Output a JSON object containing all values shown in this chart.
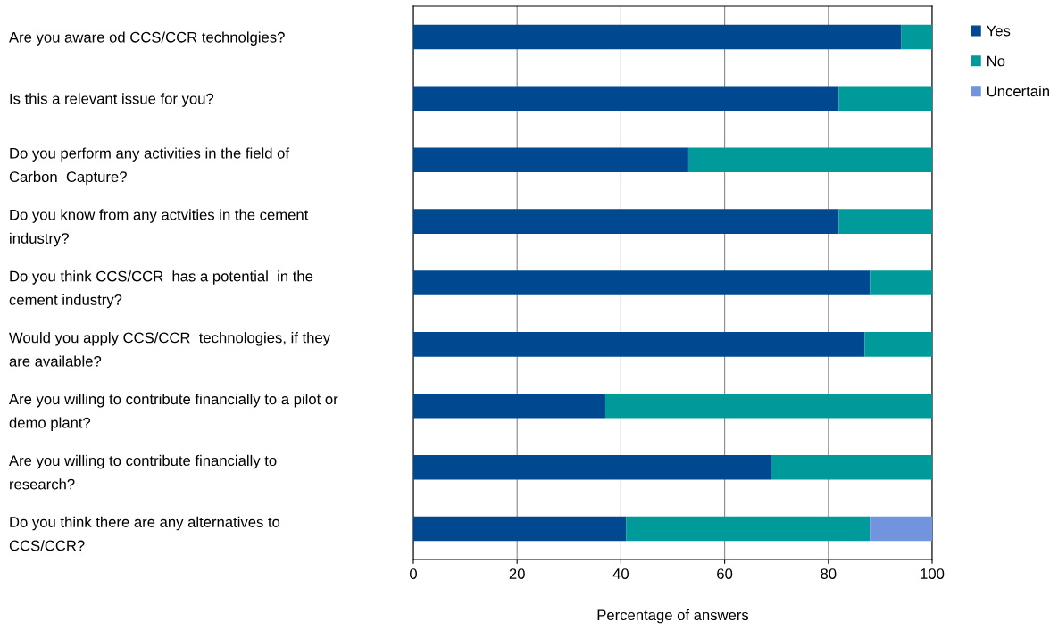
{
  "chart_data": {
    "type": "bar",
    "orientation": "horizontal",
    "stacked": true,
    "categories": [
      "Are you aware od CCS/CCR technolgies?",
      "Is this a relevant issue for you?",
      "Do you perform any activities in the field of\nCarbon  Capture?",
      "Do you know from any actvities in the cement\nindustry?",
      "Do you think CCS/CCR  has a potential  in the\ncement industry?",
      "Would you apply CCS/CCR  technologies, if they\nare available?",
      "Are you willing to contribute financially to a pilot or\ndemo plant?",
      "Are you willing to contribute financially to\nresearch?",
      "Do you think there are any alternatives to\nCCS/CCR?"
    ],
    "series": [
      {
        "name": "Yes",
        "color": "#004990",
        "values": [
          94,
          82,
          53,
          82,
          88,
          87,
          37,
          69,
          41
        ]
      },
      {
        "name": "No",
        "color": "#009a9a",
        "values": [
          6,
          18,
          47,
          18,
          12,
          13,
          63,
          31,
          47
        ]
      },
      {
        "name": "Uncertain",
        "color": "#7294de",
        "values": [
          null,
          null,
          null,
          null,
          null,
          null,
          null,
          null,
          12
        ]
      }
    ],
    "xlabel": "Percentage of answers",
    "xlim": [
      0,
      100
    ],
    "xticks": [
      0,
      20,
      40,
      60,
      80,
      100
    ],
    "grid": "x",
    "legend": "right"
  }
}
